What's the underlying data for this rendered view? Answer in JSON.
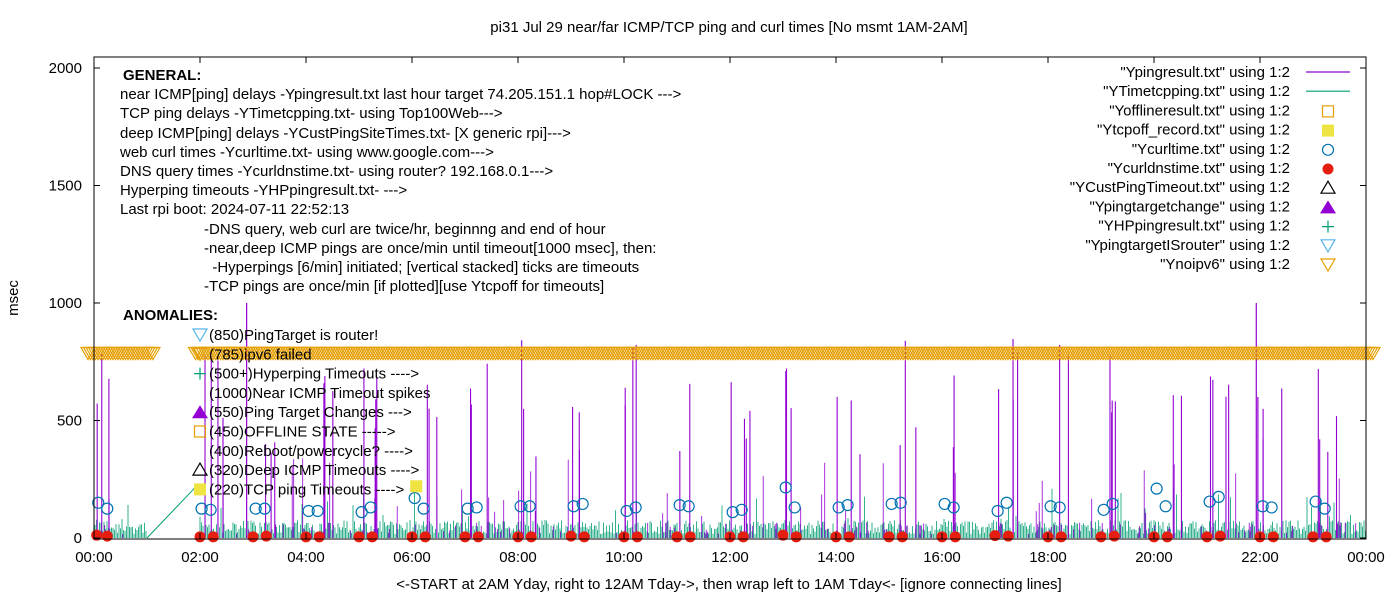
{
  "chart_data": {
    "type": "line",
    "title": "pi31 Jul 29  near/far ICMP/TCP ping and curl times [No msmt 1AM-2AM]",
    "xlabel": "<-START at 2AM Yday, right to 12AM Tday->, then wrap left to 1AM Tday<- [ignore connecting lines]",
    "ylabel": "msec",
    "xlim": [
      0,
      24
    ],
    "ylim": [
      0,
      2050
    ],
    "x_ticks": [
      "00:00",
      "02:00",
      "04:00",
      "06:00",
      "08:00",
      "10:00",
      "12:00",
      "14:00",
      "16:00",
      "18:00",
      "20:00",
      "22:00",
      "00:00"
    ],
    "y_ticks": [
      0,
      500,
      1000,
      1500,
      2000
    ],
    "colors": {
      "ping": "#9400d3",
      "tcp": "#009e73",
      "offline": "#e69f00",
      "tcpoff": "#f0e442",
      "curl": "#0072b2",
      "dns": "#e51e10",
      "deep": "#000000",
      "targetchange": "#9400d3",
      "hyper": "#009e73",
      "isrouter": "#56b4e9",
      "noipv6": "#e69f00"
    },
    "legend": {
      "position": "top-right",
      "entries": [
        {
          "label": "\"Ypingresult.txt\" using 1:2",
          "symbol": "line",
          "color": "ping"
        },
        {
          "label": "\"YTimetcpping.txt\" using 1:2",
          "symbol": "line",
          "color": "tcp"
        },
        {
          "label": "\"Yofflineresult.txt\" using 1:2",
          "symbol": "open-square",
          "color": "offline"
        },
        {
          "label": "\"Ytcpoff_record.txt\" using 1:2",
          "symbol": "filled-square",
          "color": "tcpoff"
        },
        {
          "label": "\"Ycurltime.txt\" using 1:2",
          "symbol": "open-circle",
          "color": "curl"
        },
        {
          "label": "\"Ycurldnstime.txt\" using 1:2",
          "symbol": "filled-circle",
          "color": "dns"
        },
        {
          "label": "\"YCustPingTimeout.txt\" using 1:2",
          "symbol": "open-triangle",
          "color": "deep"
        },
        {
          "label": "\"Ypingtargetchange\" using 1:2",
          "symbol": "filled-triangle",
          "color": "targetchange"
        },
        {
          "label": "\"YHPpingresult.txt\" using 1:2",
          "symbol": "plus",
          "color": "hyper"
        },
        {
          "label": "\"YpingtargetISrouter\" using 1:2",
          "symbol": "open-down-triangle",
          "color": "isrouter"
        },
        {
          "label": "\"Ynoipv6\" using 1:2",
          "symbol": "open-down-triangle",
          "color": "noipv6"
        }
      ]
    },
    "general_heading": "GENERAL:",
    "general_lines": [
      "near ICMP[ping] delays -Ypingresult.txt last hour target 74.205.151.1 hop#LOCK --->",
      "TCP ping delays -YTimetcpping.txt- using Top100Web--->",
      "deep ICMP[ping] delays -YCustPingSiteTimes.txt- [X generic rpi]--->",
      "web curl times -Ycurltime.txt- using www.google.com--->",
      "DNS query times -Ycurldnstime.txt- using router? 192.168.0.1--->",
      "Hyperping timeouts -YHPpingresult.txt- --->",
      "Last rpi boot: 2024-07-11 22:52:13"
    ],
    "general_notes": [
      "-DNS query, web curl are twice/hr, beginnng and end of hour",
      "-near,deep ICMP pings are once/min until timeout[1000 msec], then:",
      "  -Hyperpings [6/min] initiated; [vertical stacked] ticks are timeouts",
      "-TCP pings are once/min [if plotted][use Ytcpoff for timeouts]"
    ],
    "anomalies_heading": "ANOMALIES:",
    "anomalies": [
      {
        "text": "(850)PingTarget is router!",
        "symbol": "open-down-triangle",
        "color": "isrouter"
      },
      {
        "text": "(785)ipv6 failed",
        "symbol": "open-down-triangle",
        "color": "noipv6"
      },
      {
        "text": "(500+)Hyperping Timeouts ---->",
        "symbol": "plus",
        "color": "hyper"
      },
      {
        "text": "(1000)Near ICMP Timeout spikes",
        "symbol": "none",
        "color": "ping"
      },
      {
        "text": "(550)Ping Target Changes --->",
        "symbol": "filled-triangle",
        "color": "targetchange"
      },
      {
        "text": "(450)OFFLINE STATE ----->",
        "symbol": "open-square",
        "color": "offline"
      },
      {
        "text": "(400)Reboot/powercycle? ---->",
        "symbol": "none",
        "color": "deep"
      },
      {
        "text": "(320)Deep ICMP Timeouts ---->",
        "symbol": "open-triangle",
        "color": "deep"
      },
      {
        "text": "(220)TCP ping Timeouts ---->",
        "symbol": "filled-square",
        "color": "tcpoff"
      }
    ],
    "noipv6_level": 785,
    "noipv6_gap": [
      1.15,
      1.88
    ],
    "ping_spikes": [
      {
        "x": 2.88,
        "y": 1000
      },
      {
        "x": 21.93,
        "y": 1000
      },
      {
        "x": 21.96,
        "y": 600
      }
    ],
    "tcp_ramp": [
      [
        1.0,
        0
      ],
      [
        1.93,
        220
      ]
    ],
    "tcpoff_points": [
      {
        "x": 6.08,
        "y": 220
      }
    ],
    "curl_points": [
      {
        "x": 0.08,
        "y": 150
      },
      {
        "x": 0.25,
        "y": 125
      },
      {
        "x": 2.03,
        "y": 125
      },
      {
        "x": 2.2,
        "y": 120
      },
      {
        "x": 3.05,
        "y": 125
      },
      {
        "x": 3.22,
        "y": 125
      },
      {
        "x": 4.05,
        "y": 115
      },
      {
        "x": 4.22,
        "y": 115
      },
      {
        "x": 5.05,
        "y": 110
      },
      {
        "x": 5.22,
        "y": 130
      },
      {
        "x": 6.05,
        "y": 170
      },
      {
        "x": 6.22,
        "y": 125
      },
      {
        "x": 7.05,
        "y": 125
      },
      {
        "x": 7.22,
        "y": 130
      },
      {
        "x": 8.05,
        "y": 135
      },
      {
        "x": 8.22,
        "y": 135
      },
      {
        "x": 9.05,
        "y": 135
      },
      {
        "x": 9.22,
        "y": 145
      },
      {
        "x": 10.05,
        "y": 115
      },
      {
        "x": 10.22,
        "y": 130
      },
      {
        "x": 11.05,
        "y": 140
      },
      {
        "x": 11.22,
        "y": 135
      },
      {
        "x": 12.05,
        "y": 110
      },
      {
        "x": 12.22,
        "y": 120
      },
      {
        "x": 13.05,
        "y": 215
      },
      {
        "x": 13.22,
        "y": 130
      },
      {
        "x": 14.05,
        "y": 130
      },
      {
        "x": 14.22,
        "y": 140
      },
      {
        "x": 15.05,
        "y": 145
      },
      {
        "x": 15.22,
        "y": 150
      },
      {
        "x": 16.05,
        "y": 145
      },
      {
        "x": 16.22,
        "y": 130
      },
      {
        "x": 17.05,
        "y": 115
      },
      {
        "x": 17.22,
        "y": 150
      },
      {
        "x": 18.05,
        "y": 135
      },
      {
        "x": 18.22,
        "y": 130
      },
      {
        "x": 19.05,
        "y": 120
      },
      {
        "x": 19.22,
        "y": 145
      },
      {
        "x": 20.05,
        "y": 210
      },
      {
        "x": 20.22,
        "y": 135
      },
      {
        "x": 21.05,
        "y": 155
      },
      {
        "x": 21.22,
        "y": 175
      },
      {
        "x": 22.05,
        "y": 135
      },
      {
        "x": 22.22,
        "y": 130
      },
      {
        "x": 23.05,
        "y": 155
      },
      {
        "x": 23.22,
        "y": 125
      }
    ],
    "dns_points": [
      {
        "x": 0.05,
        "y": 12
      },
      {
        "x": 0.25,
        "y": 8
      },
      {
        "x": 2.0,
        "y": 5
      },
      {
        "x": 2.25,
        "y": 5
      },
      {
        "x": 3.0,
        "y": 5
      },
      {
        "x": 3.25,
        "y": 8
      },
      {
        "x": 4.0,
        "y": 5
      },
      {
        "x": 4.25,
        "y": 5
      },
      {
        "x": 5.0,
        "y": 5
      },
      {
        "x": 5.25,
        "y": 5
      },
      {
        "x": 6.0,
        "y": 5
      },
      {
        "x": 6.25,
        "y": 5
      },
      {
        "x": 7.0,
        "y": 5
      },
      {
        "x": 7.25,
        "y": 5
      },
      {
        "x": 8.0,
        "y": 5
      },
      {
        "x": 8.25,
        "y": 5
      },
      {
        "x": 9.0,
        "y": 8
      },
      {
        "x": 9.25,
        "y": 5
      },
      {
        "x": 10.0,
        "y": 5
      },
      {
        "x": 10.25,
        "y": 5
      },
      {
        "x": 11.0,
        "y": 5
      },
      {
        "x": 11.25,
        "y": 5
      },
      {
        "x": 12.0,
        "y": 5
      },
      {
        "x": 12.25,
        "y": 5
      },
      {
        "x": 13.0,
        "y": 12
      },
      {
        "x": 13.25,
        "y": 5
      },
      {
        "x": 14.0,
        "y": 5
      },
      {
        "x": 14.25,
        "y": 5
      },
      {
        "x": 15.0,
        "y": 5
      },
      {
        "x": 15.25,
        "y": 5
      },
      {
        "x": 16.0,
        "y": 5
      },
      {
        "x": 16.25,
        "y": 5
      },
      {
        "x": 17.0,
        "y": 10
      },
      {
        "x": 17.25,
        "y": 8
      },
      {
        "x": 18.0,
        "y": 5
      },
      {
        "x": 18.25,
        "y": 5
      },
      {
        "x": 19.0,
        "y": 5
      },
      {
        "x": 19.25,
        "y": 8
      },
      {
        "x": 20.0,
        "y": 5
      },
      {
        "x": 20.25,
        "y": 5
      },
      {
        "x": 21.0,
        "y": 5
      },
      {
        "x": 21.25,
        "y": 8
      },
      {
        "x": 22.0,
        "y": 5
      },
      {
        "x": 22.25,
        "y": 5
      },
      {
        "x": 23.0,
        "y": 5
      },
      {
        "x": 23.25,
        "y": 5
      }
    ]
  }
}
